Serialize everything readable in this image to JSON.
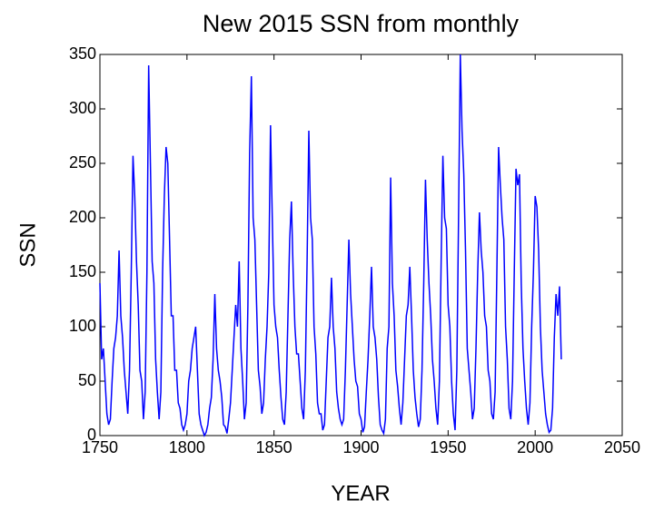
{
  "chart_data": {
    "type": "line",
    "title": "New 2015 SSN from monthly",
    "xlabel": "YEAR",
    "ylabel": "SSN",
    "x": [
      1750,
      1751,
      1752,
      1753,
      1754,
      1755,
      1756,
      1757,
      1758,
      1759,
      1760,
      1761,
      1762,
      1763,
      1764,
      1765,
      1766,
      1767,
      1768,
      1769,
      1770,
      1771,
      1772,
      1773,
      1774,
      1775,
      1776,
      1777,
      1778,
      1779,
      1780,
      1781,
      1782,
      1783,
      1784,
      1785,
      1786,
      1787,
      1788,
      1789,
      1790,
      1791,
      1792,
      1793,
      1794,
      1795,
      1796,
      1797,
      1798,
      1799,
      1800,
      1801,
      1802,
      1803,
      1804,
      1805,
      1806,
      1807,
      1808,
      1809,
      1810,
      1811,
      1812,
      1813,
      1814,
      1815,
      1816,
      1817,
      1818,
      1819,
      1820,
      1821,
      1822,
      1823,
      1824,
      1825,
      1826,
      1827,
      1828,
      1829,
      1830,
      1831,
      1832,
      1833,
      1834,
      1835,
      1836,
      1837,
      1838,
      1839,
      1840,
      1841,
      1842,
      1843,
      1844,
      1845,
      1846,
      1847,
      1848,
      1849,
      1850,
      1851,
      1852,
      1853,
      1854,
      1855,
      1856,
      1857,
      1858,
      1859,
      1860,
      1861,
      1862,
      1863,
      1864,
      1865,
      1866,
      1867,
      1868,
      1869,
      1870,
      1871,
      1872,
      1873,
      1874,
      1875,
      1876,
      1877,
      1878,
      1879,
      1880,
      1881,
      1882,
      1883,
      1884,
      1885,
      1886,
      1887,
      1888,
      1889,
      1890,
      1891,
      1892,
      1893,
      1894,
      1895,
      1896,
      1897,
      1898,
      1899,
      1900,
      1901,
      1902,
      1903,
      1904,
      1905,
      1906,
      1907,
      1908,
      1909,
      1910,
      1911,
      1912,
      1913,
      1914,
      1915,
      1916,
      1917,
      1918,
      1919,
      1920,
      1921,
      1922,
      1923,
      1924,
      1925,
      1926,
      1927,
      1928,
      1929,
      1930,
      1931,
      1932,
      1933,
      1934,
      1935,
      1936,
      1937,
      1938,
      1939,
      1940,
      1941,
      1942,
      1943,
      1944,
      1945,
      1946,
      1947,
      1948,
      1949,
      1950,
      1951,
      1952,
      1953,
      1954,
      1955,
      1956,
      1957,
      1958,
      1959,
      1960,
      1961,
      1962,
      1963,
      1964,
      1965,
      1966,
      1967,
      1968,
      1969,
      1970,
      1971,
      1972,
      1973,
      1974,
      1975,
      1976,
      1977,
      1978,
      1979,
      1980,
      1981,
      1982,
      1983,
      1984,
      1985,
      1986,
      1987,
      1988,
      1989,
      1990,
      1991,
      1992,
      1993,
      1994,
      1995,
      1996,
      1997,
      1998,
      1999,
      2000,
      2001,
      2002,
      2003,
      2004,
      2005,
      2006,
      2007,
      2008,
      2009,
      2010,
      2011,
      2012,
      2013,
      2014,
      2015
    ],
    "series": [
      {
        "color": "#0000ff",
        "values": [
          140,
          70,
          80,
          50,
          20,
          10,
          15,
          50,
          80,
          90,
          110,
          170,
          110,
          90,
          60,
          40,
          20,
          60,
          150,
          257,
          220,
          160,
          120,
          60,
          50,
          15,
          40,
          150,
          340,
          250,
          160,
          140,
          70,
          40,
          15,
          40,
          150,
          220,
          265,
          250,
          180,
          110,
          110,
          60,
          60,
          30,
          25,
          10,
          5,
          10,
          20,
          50,
          60,
          80,
          90,
          100,
          60,
          20,
          10,
          5,
          0,
          3,
          10,
          25,
          35,
          70,
          130,
          80,
          60,
          50,
          35,
          10,
          8,
          2,
          15,
          30,
          60,
          90,
          120,
          100,
          160,
          80,
          50,
          15,
          30,
          120,
          260,
          330,
          200,
          180,
          120,
          60,
          45,
          20,
          30,
          70,
          100,
          150,
          285,
          200,
          120,
          100,
          90,
          60,
          35,
          15,
          10,
          40,
          110,
          180,
          215,
          150,
          100,
          75,
          75,
          50,
          25,
          15,
          60,
          160,
          280,
          200,
          180,
          100,
          75,
          30,
          20,
          20,
          5,
          10,
          50,
          90,
          100,
          145,
          100,
          80,
          40,
          25,
          15,
          10,
          15,
          60,
          120,
          180,
          130,
          100,
          70,
          50,
          45,
          20,
          15,
          3,
          8,
          40,
          70,
          110,
          155,
          100,
          90,
          70,
          35,
          10,
          5,
          2,
          15,
          80,
          100,
          237,
          140,
          110,
          60,
          45,
          25,
          10,
          30,
          70,
          110,
          120,
          155,
          110,
          60,
          35,
          20,
          8,
          15,
          60,
          140,
          235,
          180,
          140,
          110,
          70,
          50,
          25,
          10,
          50,
          160,
          257,
          200,
          190,
          120,
          100,
          50,
          20,
          5,
          60,
          200,
          350,
          280,
          240,
          170,
          80,
          60,
          40,
          15,
          25,
          80,
          150,
          205,
          170,
          150,
          110,
          100,
          60,
          50,
          20,
          15,
          40,
          150,
          265,
          230,
          200,
          180,
          100,
          70,
          25,
          15,
          50,
          150,
          245,
          230,
          240,
          140,
          80,
          50,
          25,
          10,
          30,
          100,
          150,
          220,
          210,
          170,
          100,
          60,
          40,
          20,
          10,
          3,
          5,
          25,
          90,
          130,
          110,
          137,
          70
        ]
      }
    ],
    "xlim": [
      1750,
      2050
    ],
    "xticks": [
      1750,
      1800,
      1850,
      1900,
      1950,
      2000,
      2050
    ],
    "ylim": [
      0,
      350
    ],
    "yticks": [
      0,
      50,
      100,
      150,
      200,
      250,
      300,
      350
    ]
  }
}
